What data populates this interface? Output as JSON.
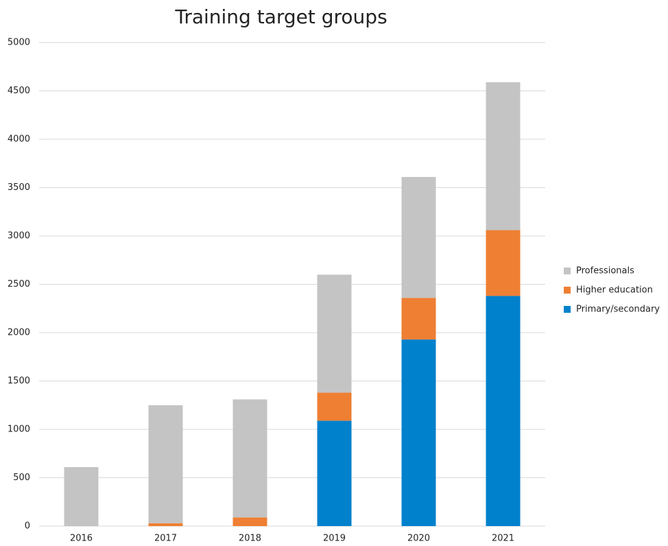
{
  "chart_data": {
    "type": "stacked_bar",
    "title": "Training target groups",
    "categories": [
      "2016",
      "2017",
      "2018",
      "2019",
      "2020",
      "2021"
    ],
    "series": [
      {
        "name": "Primary/secondary",
        "color": "#0081cc",
        "values": [
          0,
          0,
          0,
          1090,
          1930,
          2380
        ]
      },
      {
        "name": "Higher education",
        "color": "#ee7f33",
        "values": [
          0,
          30,
          90,
          290,
          430,
          680
        ]
      },
      {
        "name": "Professionals",
        "color": "#c4c4c4",
        "values": [
          610,
          1220,
          1220,
          1220,
          1250,
          1530
        ]
      }
    ],
    "ylim": [
      0,
      5000
    ],
    "yticks": [
      0,
      500,
      1000,
      1500,
      2000,
      2500,
      3000,
      3500,
      4000,
      4500,
      5000
    ],
    "grid": true,
    "legend": "right"
  }
}
